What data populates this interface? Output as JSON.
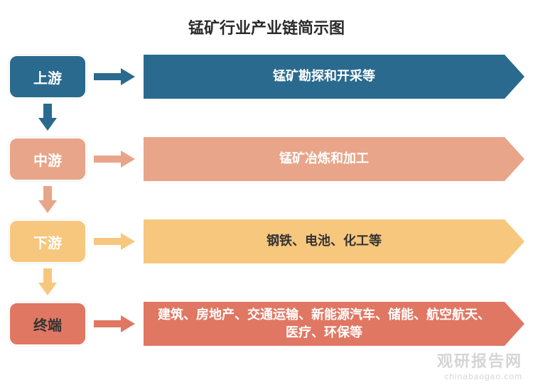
{
  "title": "锰矿行业产业链简示图",
  "stages": [
    {
      "label": "上游",
      "content": "锰矿勘探和开采等",
      "label_bg": "#2a6a8e",
      "label_text_dark": false,
      "arrow_color": "#2a6a8e",
      "content_bg": "#2a6a8e",
      "content_text_dark": false
    },
    {
      "label": "中游",
      "content": "锰矿冶炼和加工",
      "label_bg": "#e8a589",
      "label_text_dark": false,
      "arrow_color": "#e8a589",
      "content_bg": "#e8a589",
      "content_text_dark": false
    },
    {
      "label": "下游",
      "content": "钢铁、电池、化工等",
      "label_bg": "#f7c77e",
      "label_text_dark": false,
      "arrow_color": "#f7c77e",
      "content_bg": "#f7c77e",
      "content_text_dark": true
    },
    {
      "label": "终端",
      "content": "建筑、房地产、交通运输、新能源汽车、储能、航空航天、医疗、环保等",
      "label_bg": "#e07763",
      "label_text_dark": true,
      "arrow_color": "#e07763",
      "content_bg": "#e07763",
      "content_text_dark": false
    }
  ],
  "vertical_arrows": [
    {
      "color": "#2a6a8e"
    },
    {
      "color": "#e8a589"
    },
    {
      "color": "#f7c77e"
    }
  ],
  "watermark": {
    "main": "观研报告网",
    "sub": "chinabaogao.com"
  },
  "background_color": "#ffffff"
}
